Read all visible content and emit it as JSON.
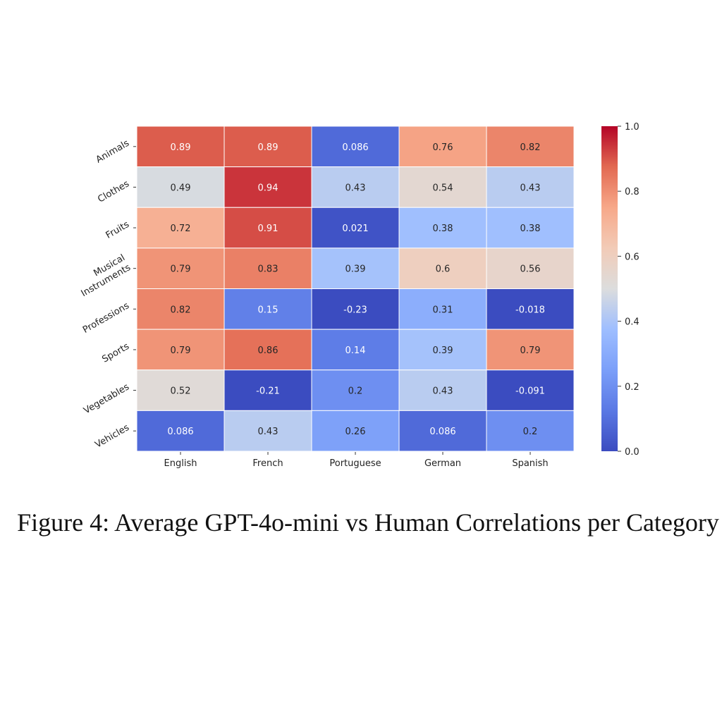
{
  "caption": "Figure 4: Average GPT-4o-mini vs Human Correlations per Category",
  "chart_data": {
    "type": "heatmap",
    "title": "",
    "xlabel": "",
    "ylabel": "",
    "x_categories": [
      "English",
      "French",
      "Portuguese",
      "German",
      "Spanish"
    ],
    "y_categories": [
      "Animals",
      "Clothes",
      "Fruits",
      "Musical Instruments",
      "Professions",
      "Sports",
      "Vegetables",
      "Vehicles"
    ],
    "values": [
      [
        0.89,
        0.89,
        0.086,
        0.76,
        0.82
      ],
      [
        0.49,
        0.94,
        0.43,
        0.54,
        0.43
      ],
      [
        0.72,
        0.91,
        0.021,
        0.38,
        0.38
      ],
      [
        0.79,
        0.83,
        0.39,
        0.6,
        0.56
      ],
      [
        0.82,
        0.15,
        -0.23,
        0.31,
        -0.018
      ],
      [
        0.79,
        0.86,
        0.14,
        0.39,
        0.79
      ],
      [
        0.52,
        -0.21,
        0.2,
        0.43,
        -0.091
      ],
      [
        0.086,
        0.43,
        0.26,
        0.086,
        0.2
      ]
    ],
    "value_labels": [
      [
        "0.89",
        "0.89",
        "0.086",
        "0.76",
        "0.82"
      ],
      [
        "0.49",
        "0.94",
        "0.43",
        "0.54",
        "0.43"
      ],
      [
        "0.72",
        "0.91",
        "0.021",
        "0.38",
        "0.38"
      ],
      [
        "0.79",
        "0.83",
        "0.39",
        "0.6",
        "0.56"
      ],
      [
        "0.82",
        "0.15",
        "-0.23",
        "0.31",
        "-0.018"
      ],
      [
        "0.79",
        "0.86",
        "0.14",
        "0.39",
        "0.79"
      ],
      [
        "0.52",
        "-0.21",
        "0.2",
        "0.43",
        "-0.091"
      ],
      [
        "0.086",
        "0.43",
        "0.26",
        "0.086",
        "0.2"
      ]
    ],
    "colormap": "coolwarm",
    "color_range": [
      0.0,
      1.0
    ],
    "colorbar_ticks": [
      "0.0",
      "0.2",
      "0.4",
      "0.6",
      "0.8",
      "1.0"
    ],
    "grid": false,
    "legend": "colorbar right"
  }
}
